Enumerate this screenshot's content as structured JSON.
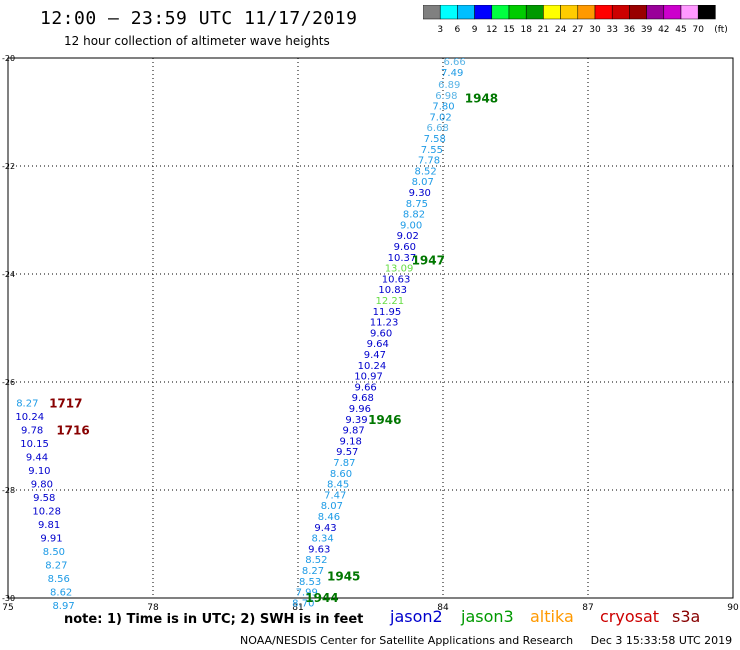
{
  "header": {
    "title": "12:00 – 23:59 UTC 11/17/2019",
    "subtitle": "12 hour collection of altimeter wave heights"
  },
  "colorbar": {
    "unit": "(ft)",
    "colors": [
      "#808080",
      "#00ffff",
      "#00bfff",
      "#0000ff",
      "#00ff40",
      "#00cc00",
      "#009900",
      "#ffff00",
      "#ffcc00",
      "#ff9900",
      "#ff0000",
      "#cc0000",
      "#990000",
      "#990099",
      "#cc00cc",
      "#ff99ff",
      "#000000"
    ],
    "labels": [
      "3",
      "6",
      "9",
      "12",
      "15",
      "18",
      "21",
      "24",
      "27",
      "30",
      "33",
      "36",
      "39",
      "42",
      "45",
      "70"
    ]
  },
  "map": {
    "xlim": [
      75,
      90
    ],
    "ylim": [
      -30,
      -20
    ],
    "x_ticks": [
      "75",
      "78",
      "81",
      "84",
      "87",
      "90"
    ],
    "y_ticks": [
      "-20",
      "-22",
      "-24",
      "-26",
      "-28",
      "-30"
    ]
  },
  "chart_data": {
    "type": "scatter",
    "x_axis": "longitude",
    "y_axis": "latitude",
    "tracks": [
      {
        "time": "1948",
        "satellite": "jason2",
        "points": [
          {
            "lon": 84.24,
            "lat": -20.07,
            "v": "6.66",
            "color": "#5ab4e6"
          },
          {
            "lon": 84.19,
            "lat": -20.28,
            "v": "7.49",
            "color": "#1e9be6"
          },
          {
            "lon": 84.13,
            "lat": -20.5,
            "v": "6.89",
            "color": "#5ab4e6"
          },
          {
            "lon": 84.07,
            "lat": -20.7,
            "v": "6.98",
            "color": "#5ab4e6"
          },
          {
            "lon": 84.01,
            "lat": -20.9,
            "v": "7.80",
            "color": "#1e9be6"
          },
          {
            "lon": 83.95,
            "lat": -21.1,
            "v": "7.02",
            "color": "#1e9be6"
          },
          {
            "lon": 83.89,
            "lat": -21.3,
            "v": "6.68",
            "color": "#5ab4e6"
          },
          {
            "lon": 83.83,
            "lat": -21.5,
            "v": "7.58",
            "color": "#1e9be6"
          },
          {
            "lon": 83.77,
            "lat": -21.7,
            "v": "7.55",
            "color": "#1e9be6"
          },
          {
            "lon": 83.71,
            "lat": -21.9,
            "v": "7.78",
            "color": "#1e9be6"
          },
          {
            "lon": 83.64,
            "lat": -22.1,
            "v": "8.52",
            "color": "#1e9be6"
          },
          {
            "lon": 83.58,
            "lat": -22.3,
            "v": "8.07",
            "color": "#1e9be6"
          },
          {
            "lon": 83.52,
            "lat": -22.5,
            "v": "9.30",
            "color": "#0000cd"
          },
          {
            "lon": 83.46,
            "lat": -22.7,
            "v": "8.75",
            "color": "#1e9be6"
          },
          {
            "lon": 83.4,
            "lat": -22.9,
            "v": "8.82",
            "color": "#1e9be6"
          },
          {
            "lon": 83.34,
            "lat": -23.1,
            "v": "9.00",
            "color": "#1e9be6"
          },
          {
            "lon": 83.27,
            "lat": -23.3,
            "v": "9.02",
            "color": "#0000cd"
          },
          {
            "lon": 83.21,
            "lat": -23.5,
            "v": "9.60",
            "color": "#0000cd"
          }
        ]
      },
      {
        "time": "1947",
        "satellite": "jason2",
        "points": [
          {
            "lon": 83.15,
            "lat": -23.7,
            "v": "10.37",
            "color": "#0000cd"
          },
          {
            "lon": 83.09,
            "lat": -23.9,
            "v": "13.09",
            "color": "#66dd44"
          },
          {
            "lon": 83.03,
            "lat": -24.1,
            "v": "10.63",
            "color": "#0000cd"
          },
          {
            "lon": 82.96,
            "lat": -24.3,
            "v": "10.83",
            "color": "#0000cd"
          },
          {
            "lon": 82.9,
            "lat": -24.5,
            "v": "12.21",
            "color": "#66dd44"
          },
          {
            "lon": 82.84,
            "lat": -24.7,
            "v": "11.95",
            "color": "#0000cd"
          },
          {
            "lon": 82.78,
            "lat": -24.9,
            "v": "11.23",
            "color": "#0000cd"
          },
          {
            "lon": 82.72,
            "lat": -25.1,
            "v": "9.60",
            "color": "#0000cd"
          },
          {
            "lon": 82.65,
            "lat": -25.3,
            "v": "9.64",
            "color": "#0000cd"
          },
          {
            "lon": 82.59,
            "lat": -25.5,
            "v": "9.47",
            "color": "#0000cd"
          },
          {
            "lon": 82.53,
            "lat": -25.7,
            "v": "10.24",
            "color": "#0000cd"
          },
          {
            "lon": 82.46,
            "lat": -25.9,
            "v": "10.97",
            "color": "#0000cd"
          },
          {
            "lon": 82.4,
            "lat": -26.1,
            "v": "9.66",
            "color": "#0000cd"
          },
          {
            "lon": 82.34,
            "lat": -26.3,
            "v": "9.68",
            "color": "#0000cd"
          }
        ]
      },
      {
        "time": "1946",
        "satellite": "jason2",
        "points": [
          {
            "lon": 82.28,
            "lat": -26.5,
            "v": "9.96",
            "color": "#0000cd"
          },
          {
            "lon": 82.21,
            "lat": -26.7,
            "v": "9.39",
            "color": "#0000cd"
          },
          {
            "lon": 82.15,
            "lat": -26.9,
            "v": "9.87",
            "color": "#0000cd"
          },
          {
            "lon": 82.09,
            "lat": -27.1,
            "v": "9.18",
            "color": "#0000cd"
          },
          {
            "lon": 82.02,
            "lat": -27.3,
            "v": "9.57",
            "color": "#0000cd"
          },
          {
            "lon": 81.96,
            "lat": -27.5,
            "v": "7.87",
            "color": "#1e9be6"
          },
          {
            "lon": 81.89,
            "lat": -27.7,
            "v": "8.60",
            "color": "#1e9be6"
          },
          {
            "lon": 81.83,
            "lat": -27.9,
            "v": "8.45",
            "color": "#1e9be6"
          },
          {
            "lon": 81.77,
            "lat": -28.1,
            "v": "7.47",
            "color": "#1e9be6"
          },
          {
            "lon": 81.7,
            "lat": -28.3,
            "v": "8.07",
            "color": "#1e9be6"
          },
          {
            "lon": 81.64,
            "lat": -28.5,
            "v": "8.46",
            "color": "#1e9be6"
          },
          {
            "lon": 81.57,
            "lat": -28.7,
            "v": "9.43",
            "color": "#0000cd"
          },
          {
            "lon": 81.51,
            "lat": -28.9,
            "v": "8.34",
            "color": "#1e9be6"
          },
          {
            "lon": 81.44,
            "lat": -29.1,
            "v": "9.63",
            "color": "#0000cd"
          }
        ]
      },
      {
        "time": "1945",
        "satellite": "jason2",
        "points": [
          {
            "lon": 81.38,
            "lat": -29.3,
            "v": "8.52",
            "color": "#1e9be6"
          },
          {
            "lon": 81.31,
            "lat": -29.5,
            "v": "8.27",
            "color": "#1e9be6"
          },
          {
            "lon": 81.25,
            "lat": -29.7,
            "v": "8.53",
            "color": "#1e9be6"
          },
          {
            "lon": 81.18,
            "lat": -29.9,
            "v": "7.99",
            "color": "#1e9be6"
          },
          {
            "lon": 81.11,
            "lat": -30.1,
            "v": "8.70",
            "color": "#1e9be6"
          },
          {
            "lon": 81.05,
            "lat": -30.3,
            "v": "7.83",
            "color": "#1e9be6"
          }
        ]
      },
      {
        "time": "1717",
        "satellite": "cryosat",
        "points": [
          {
            "lon": 75.4,
            "lat": -26.4,
            "v": "8.27",
            "color": "#1e9be6"
          },
          {
            "lon": 75.45,
            "lat": -26.65,
            "v": "10.24",
            "color": "#0000cd"
          },
          {
            "lon": 75.5,
            "lat": -26.9,
            "v": "9.78",
            "color": "#0000cd"
          }
        ]
      },
      {
        "time": "1716",
        "satellite": "cryosat",
        "points": [
          {
            "lon": 75.55,
            "lat": -27.15,
            "v": "10.15",
            "color": "#0000cd"
          },
          {
            "lon": 75.6,
            "lat": -27.4,
            "v": "9.44",
            "color": "#0000cd"
          },
          {
            "lon": 75.65,
            "lat": -27.65,
            "v": "9.10",
            "color": "#0000cd"
          },
          {
            "lon": 75.7,
            "lat": -27.9,
            "v": "9.80",
            "color": "#0000cd"
          },
          {
            "lon": 75.75,
            "lat": -28.15,
            "v": "9.58",
            "color": "#0000cd"
          },
          {
            "lon": 75.8,
            "lat": -28.4,
            "v": "10.28",
            "color": "#0000cd"
          },
          {
            "lon": 75.85,
            "lat": -28.65,
            "v": "9.81",
            "color": "#0000cd"
          },
          {
            "lon": 75.9,
            "lat": -28.9,
            "v": "9.91",
            "color": "#0000cd"
          },
          {
            "lon": 75.95,
            "lat": -29.15,
            "v": "8.50",
            "color": "#1e9be6"
          },
          {
            "lon": 76.0,
            "lat": -29.4,
            "v": "8.27",
            "color": "#1e9be6"
          },
          {
            "lon": 76.05,
            "lat": -29.65,
            "v": "8.56",
            "color": "#1e9be6"
          },
          {
            "lon": 76.1,
            "lat": -29.9,
            "v": "8.62",
            "color": "#1e9be6"
          },
          {
            "lon": 76.15,
            "lat": -30.15,
            "v": "8.97",
            "color": "#1e9be6"
          }
        ]
      }
    ],
    "time_labels": [
      {
        "text": "1948",
        "lon": 84.45,
        "lat": -20.75,
        "color": "#007700"
      },
      {
        "text": "1947",
        "lon": 83.35,
        "lat": -23.75,
        "color": "#007700"
      },
      {
        "text": "1946",
        "lon": 82.45,
        "lat": -26.7,
        "color": "#007700"
      },
      {
        "text": "1945",
        "lon": 81.6,
        "lat": -29.6,
        "color": "#007700"
      },
      {
        "text": "1944",
        "lon": 81.15,
        "lat": -30.0,
        "color": "#007700"
      },
      {
        "text": "1717",
        "lon": 75.85,
        "lat": -26.4,
        "color": "#880000"
      },
      {
        "text": "1716",
        "lon": 76.0,
        "lat": -26.9,
        "color": "#880000"
      }
    ]
  },
  "footer": {
    "note": "note: 1) Time is in UTC; 2) SWH is in feet",
    "satellites": [
      {
        "name": "jason2",
        "color": "#0000cc"
      },
      {
        "name": "jason3",
        "color": "#009900"
      },
      {
        "name": "altika",
        "color": "#ff9900"
      },
      {
        "name": "cryosat",
        "color": "#cc0000"
      },
      {
        "name": "s3a",
        "color": "#880000"
      }
    ],
    "credit": "NOAA/NESDIS Center for Satellite Applications and Research",
    "timestamp": "Dec  3 15:33:58 UTC 2019"
  }
}
